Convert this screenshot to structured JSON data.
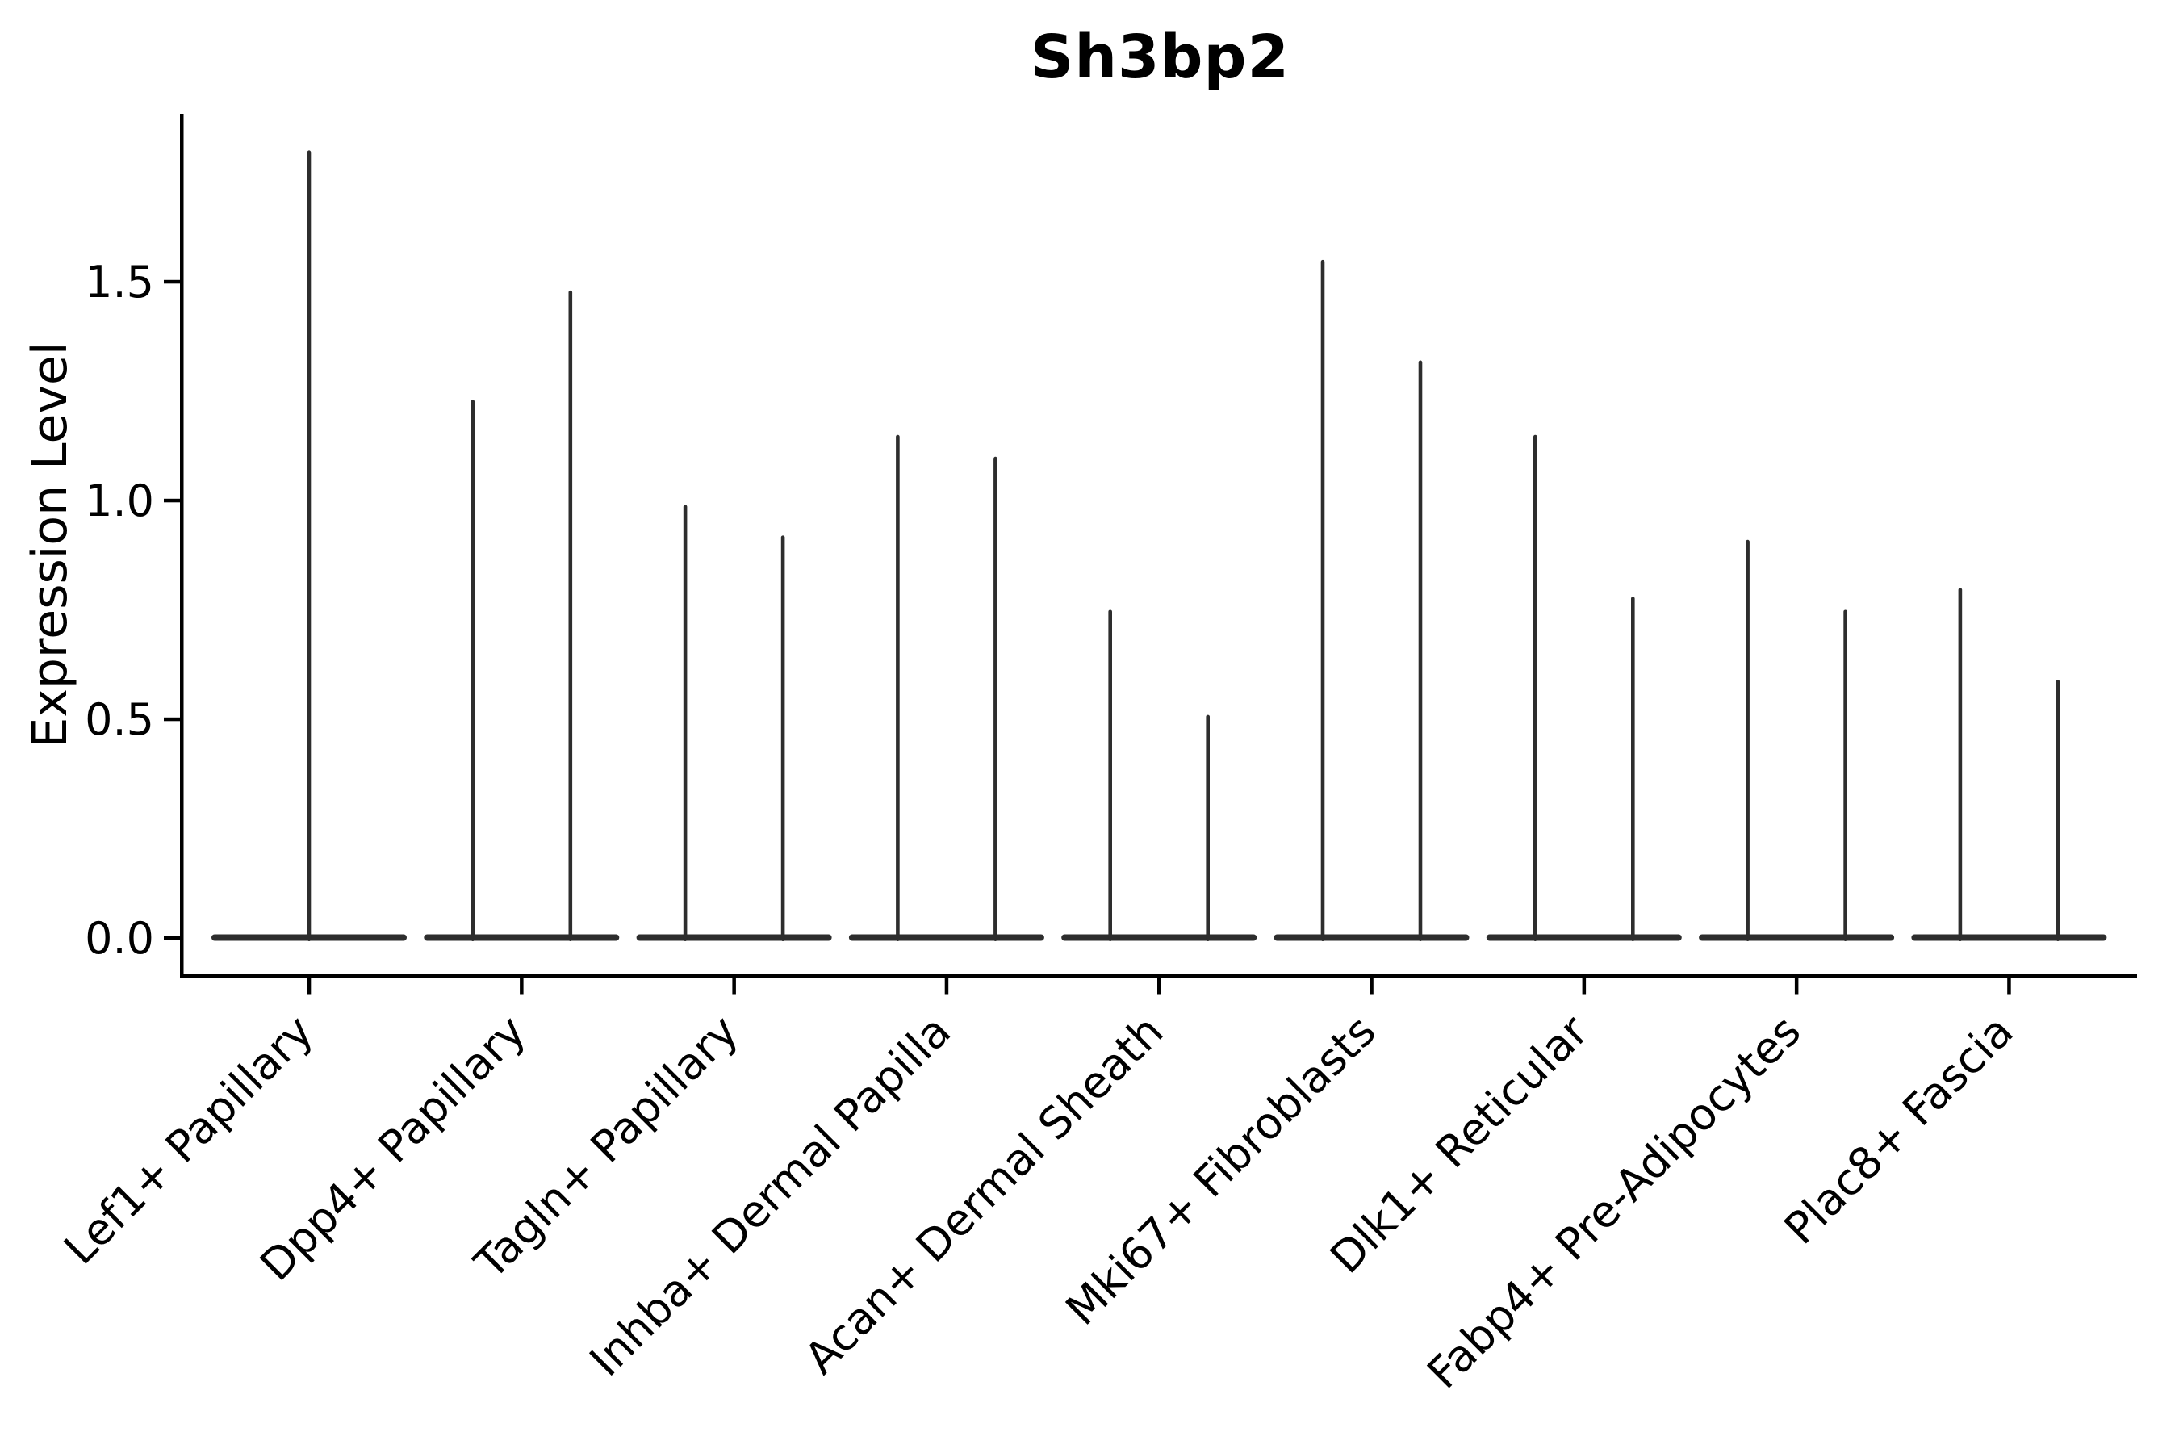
{
  "figure": {
    "title": "Sh3bp2",
    "ylabel": "Expression Level"
  },
  "chart_data": {
    "type": "violin",
    "title": "Sh3bp2",
    "xlabel": "",
    "ylabel": "Expression Level",
    "y_ticks": [
      "0.0",
      "0.5",
      "1.0",
      "1.5"
    ],
    "ylim": [
      -0.09,
      1.89
    ],
    "grid": false,
    "legend": "none",
    "ink_color": "#2d2d2d",
    "axis_color": "#000000",
    "baseline_value": 0.0,
    "categories": [
      {
        "label": "Lef1+ Papillary",
        "violin_maxima": [
          1.8
        ]
      },
      {
        "label": "Dpp4+ Papillary",
        "violin_maxima": [
          1.23,
          1.48
        ]
      },
      {
        "label": "Tagln+ Papillary",
        "violin_maxima": [
          0.99,
          0.92
        ]
      },
      {
        "label": "Inhba+ Dermal Papilla",
        "violin_maxima": [
          1.15,
          1.1
        ]
      },
      {
        "label": "Acan+ Dermal Sheath",
        "violin_maxima": [
          0.75,
          0.51
        ]
      },
      {
        "label": "Mki67+ Fibroblasts",
        "violin_maxima": [
          1.55,
          1.32
        ]
      },
      {
        "label": "Dlk1+ Reticular",
        "violin_maxima": [
          1.15,
          0.78
        ]
      },
      {
        "label": "Fabp4+ Pre-Adipocytes",
        "violin_maxima": [
          0.91,
          0.75
        ]
      },
      {
        "label": "Plac8+ Fascia",
        "violin_maxima": [
          0.8,
          0.59
        ]
      }
    ],
    "note": "Each category shows violin(s) collapsed at expression 0 with a thin density spike rising to the listed maximum; categories with two maxima show two side-by-side violins."
  }
}
